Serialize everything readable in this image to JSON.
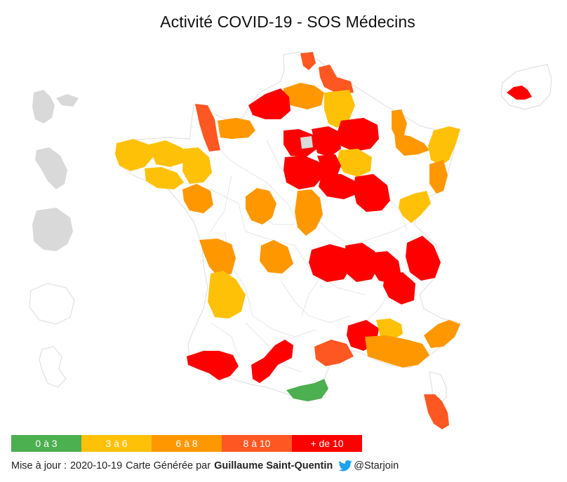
{
  "title": "Activité COVID-19 - SOS Médecins",
  "colors": {
    "c0_3": "#4caf50",
    "c3_6": "#ffc107",
    "c6_8": "#ff9800",
    "c8_10": "#ff5722",
    "c10p": "#ff0000",
    "no_data": "#d9d9d9",
    "border": "#e0e0e0"
  },
  "legend": [
    {
      "label": "0 à 3",
      "color": "#4caf50"
    },
    {
      "label": "3 à 6",
      "color": "#ffc107"
    },
    {
      "label": "6 à 8",
      "color": "#ff9800"
    },
    {
      "label": "8 à 10",
      "color": "#ff5722"
    },
    {
      "label": "+ de 10",
      "color": "#ff0000"
    }
  ],
  "footer": {
    "update_label": "Mise à jour :",
    "update_date": "2020-10-19",
    "generated_by": "Carte Générée par",
    "author": "Guillaume Saint-Quentin",
    "handle": "@Starjoin"
  }
}
